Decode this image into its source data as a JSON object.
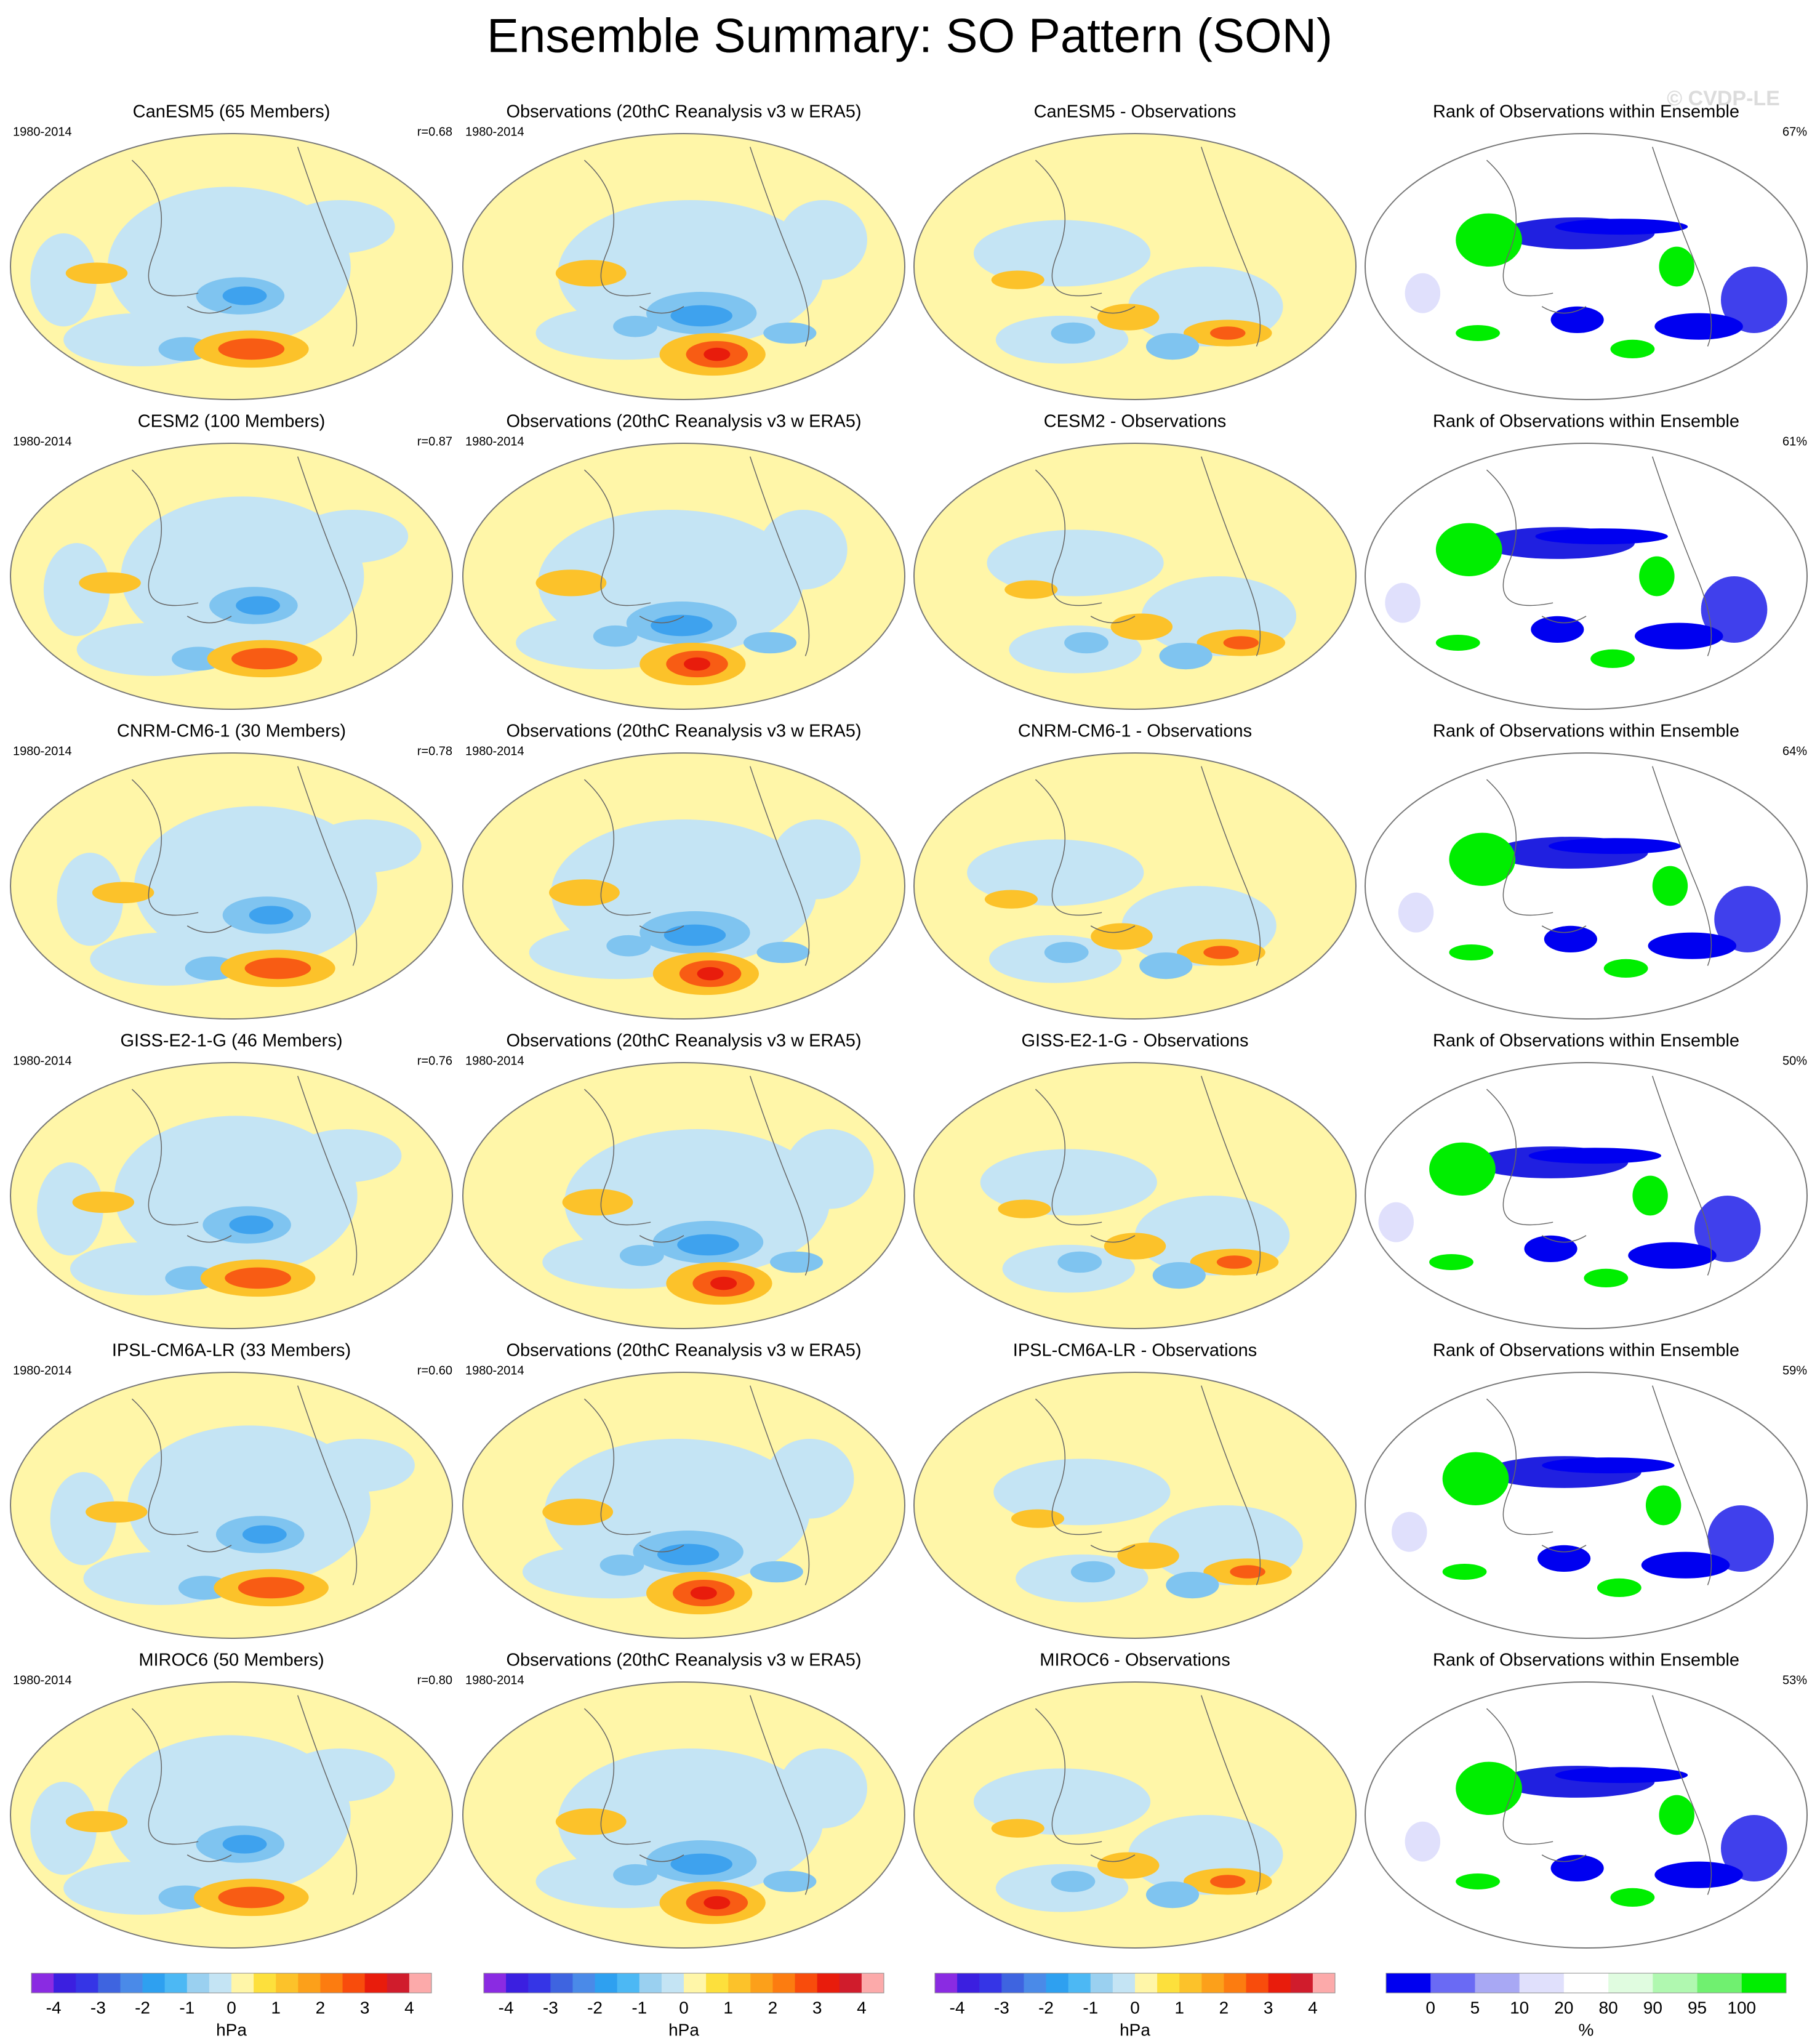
{
  "title": "Ensemble Summary: SO Pattern (SON)",
  "watermark": "© CVDP-LE",
  "rows": [
    {
      "panels": [
        {
          "title": "CanESM5 (65 Members)",
          "period": "1980-2014",
          "stat": "r=0.68"
        },
        {
          "title": "Observations (20thC Reanalysis v3 w ERA5)",
          "period": "1980-2014"
        },
        {
          "title": "CanESM5 - Observations"
        },
        {
          "title": "Rank of Observations within Ensemble",
          "stat": "67%"
        }
      ]
    },
    {
      "panels": [
        {
          "title": "CESM2 (100 Members)",
          "period": "1980-2014",
          "stat": "r=0.87"
        },
        {
          "title": "Observations (20thC Reanalysis v3 w ERA5)",
          "period": "1980-2014"
        },
        {
          "title": "CESM2 - Observations"
        },
        {
          "title": "Rank of Observations within Ensemble",
          "stat": "61%"
        }
      ]
    },
    {
      "panels": [
        {
          "title": "CNRM-CM6-1 (30 Members)",
          "period": "1980-2014",
          "stat": "r=0.78"
        },
        {
          "title": "Observations (20thC Reanalysis v3 w ERA5)",
          "period": "1980-2014"
        },
        {
          "title": "CNRM-CM6-1 - Observations"
        },
        {
          "title": "Rank of Observations within Ensemble",
          "stat": "64%"
        }
      ]
    },
    {
      "panels": [
        {
          "title": "GISS-E2-1-G (46 Members)",
          "period": "1980-2014",
          "stat": "r=0.76"
        },
        {
          "title": "Observations (20thC Reanalysis v3 w ERA5)",
          "period": "1980-2014"
        },
        {
          "title": "GISS-E2-1-G - Observations"
        },
        {
          "title": "Rank of Observations within Ensemble",
          "stat": "50%"
        }
      ]
    },
    {
      "panels": [
        {
          "title": "IPSL-CM6A-LR (33 Members)",
          "period": "1980-2014",
          "stat": "r=0.60"
        },
        {
          "title": "Observations (20thC Reanalysis v3 w ERA5)",
          "period": "1980-2014"
        },
        {
          "title": "IPSL-CM6A-LR - Observations"
        },
        {
          "title": "Rank of Observations within Ensemble",
          "stat": "59%"
        }
      ]
    },
    {
      "panels": [
        {
          "title": "MIROC6 (50 Members)",
          "period": "1980-2014",
          "stat": "r=0.80"
        },
        {
          "title": "Observations (20thC Reanalysis v3 w ERA5)",
          "period": "1980-2014"
        },
        {
          "title": "MIROC6 - Observations"
        },
        {
          "title": "Rank of Observations within Ensemble",
          "stat": "53%"
        }
      ]
    }
  ],
  "colorbars": [
    {
      "ticks": [
        -4,
        -3,
        -2,
        -1,
        0,
        1,
        2,
        3,
        4
      ],
      "unit": "hPa",
      "colors": [
        "#8a2be2",
        "#3b1fe0",
        "#3535e6",
        "#3e64e0",
        "#4a8ae8",
        "#2ea0f0",
        "#4cb8f4",
        "#9ad0f0",
        "#c4e4f4",
        "#fff6a8",
        "#fde03c",
        "#fcc22a",
        "#fca01a",
        "#fc7c10",
        "#f84c0c",
        "#e81c0c",
        "#d01c2c",
        "#fcaaaa"
      ]
    },
    {
      "ticks": [
        -4,
        -3,
        -2,
        -1,
        0,
        1,
        2,
        3,
        4
      ],
      "unit": "hPa",
      "colors": [
        "#8a2be2",
        "#3b1fe0",
        "#3535e6",
        "#3e64e0",
        "#4a8ae8",
        "#2ea0f0",
        "#4cb8f4",
        "#9ad0f0",
        "#c4e4f4",
        "#fff6a8",
        "#fde03c",
        "#fcc22a",
        "#fca01a",
        "#fc7c10",
        "#f84c0c",
        "#e81c0c",
        "#d01c2c",
        "#fcaaaa"
      ]
    },
    {
      "ticks": [
        -4,
        -3,
        -2,
        -1,
        0,
        1,
        2,
        3,
        4
      ],
      "unit": "hPa",
      "colors": [
        "#8a2be2",
        "#3b1fe0",
        "#3535e6",
        "#3e64e0",
        "#4a8ae8",
        "#2ea0f0",
        "#4cb8f4",
        "#9ad0f0",
        "#c4e4f4",
        "#fff6a8",
        "#fde03c",
        "#fcc22a",
        "#fca01a",
        "#fc7c10",
        "#f84c0c",
        "#e81c0c",
        "#d01c2c",
        "#fcaaaa"
      ]
    },
    {
      "ticks": [
        0,
        5,
        10,
        20,
        80,
        90,
        95,
        100
      ],
      "unit": "%",
      "colors": [
        "#0000f0",
        "#6a6af4",
        "#a8a8f4",
        "#e0e0fc",
        "#ffffff",
        "#e0fce0",
        "#b0f8b0",
        "#70f070",
        "#00ee00"
      ]
    }
  ]
}
